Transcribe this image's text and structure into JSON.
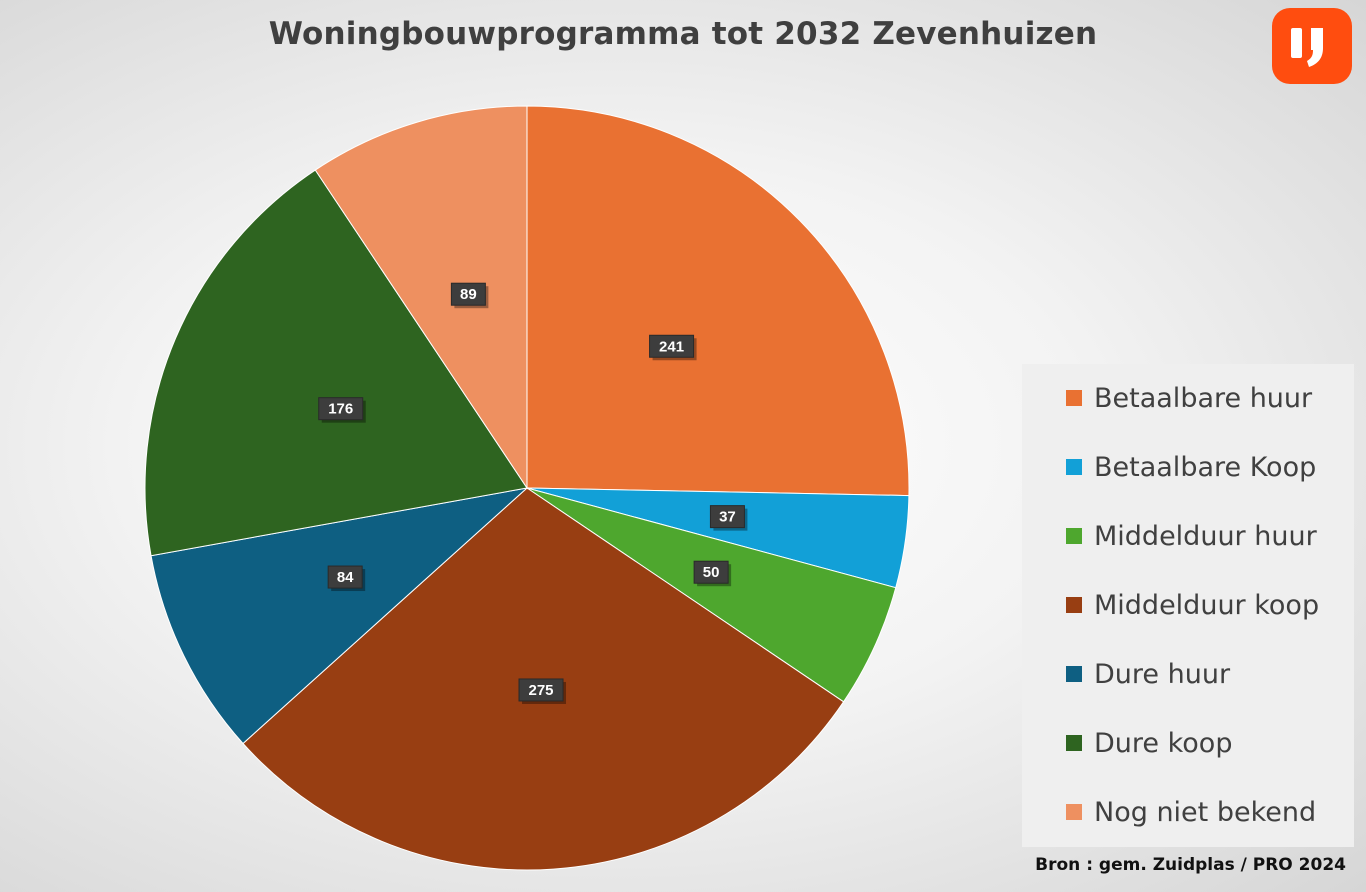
{
  "chart_data": {
    "type": "pie",
    "title": "Woningbouwprogramma tot 2032 Zevenhuizen",
    "categories": [
      "Betaalbare huur",
      "Betaalbare Koop",
      "Middelduur huur",
      "Middelduur koop",
      "Dure huur",
      "Dure koop",
      "Nog niet bekend"
    ],
    "values": [
      241,
      37,
      50,
      275,
      84,
      176,
      89
    ],
    "colors": [
      "#e97132",
      "#12a0d7",
      "#4ea72e",
      "#983e12",
      "#0e5f82",
      "#2e6420",
      "#ee9060"
    ],
    "legend_position": "right",
    "data_labels": true
  },
  "source": "Bron : gem. Zuidplas / PRO 2024",
  "logo": {
    "icon": "quote-mark-logo-icon",
    "color": "#ff4d0f"
  }
}
